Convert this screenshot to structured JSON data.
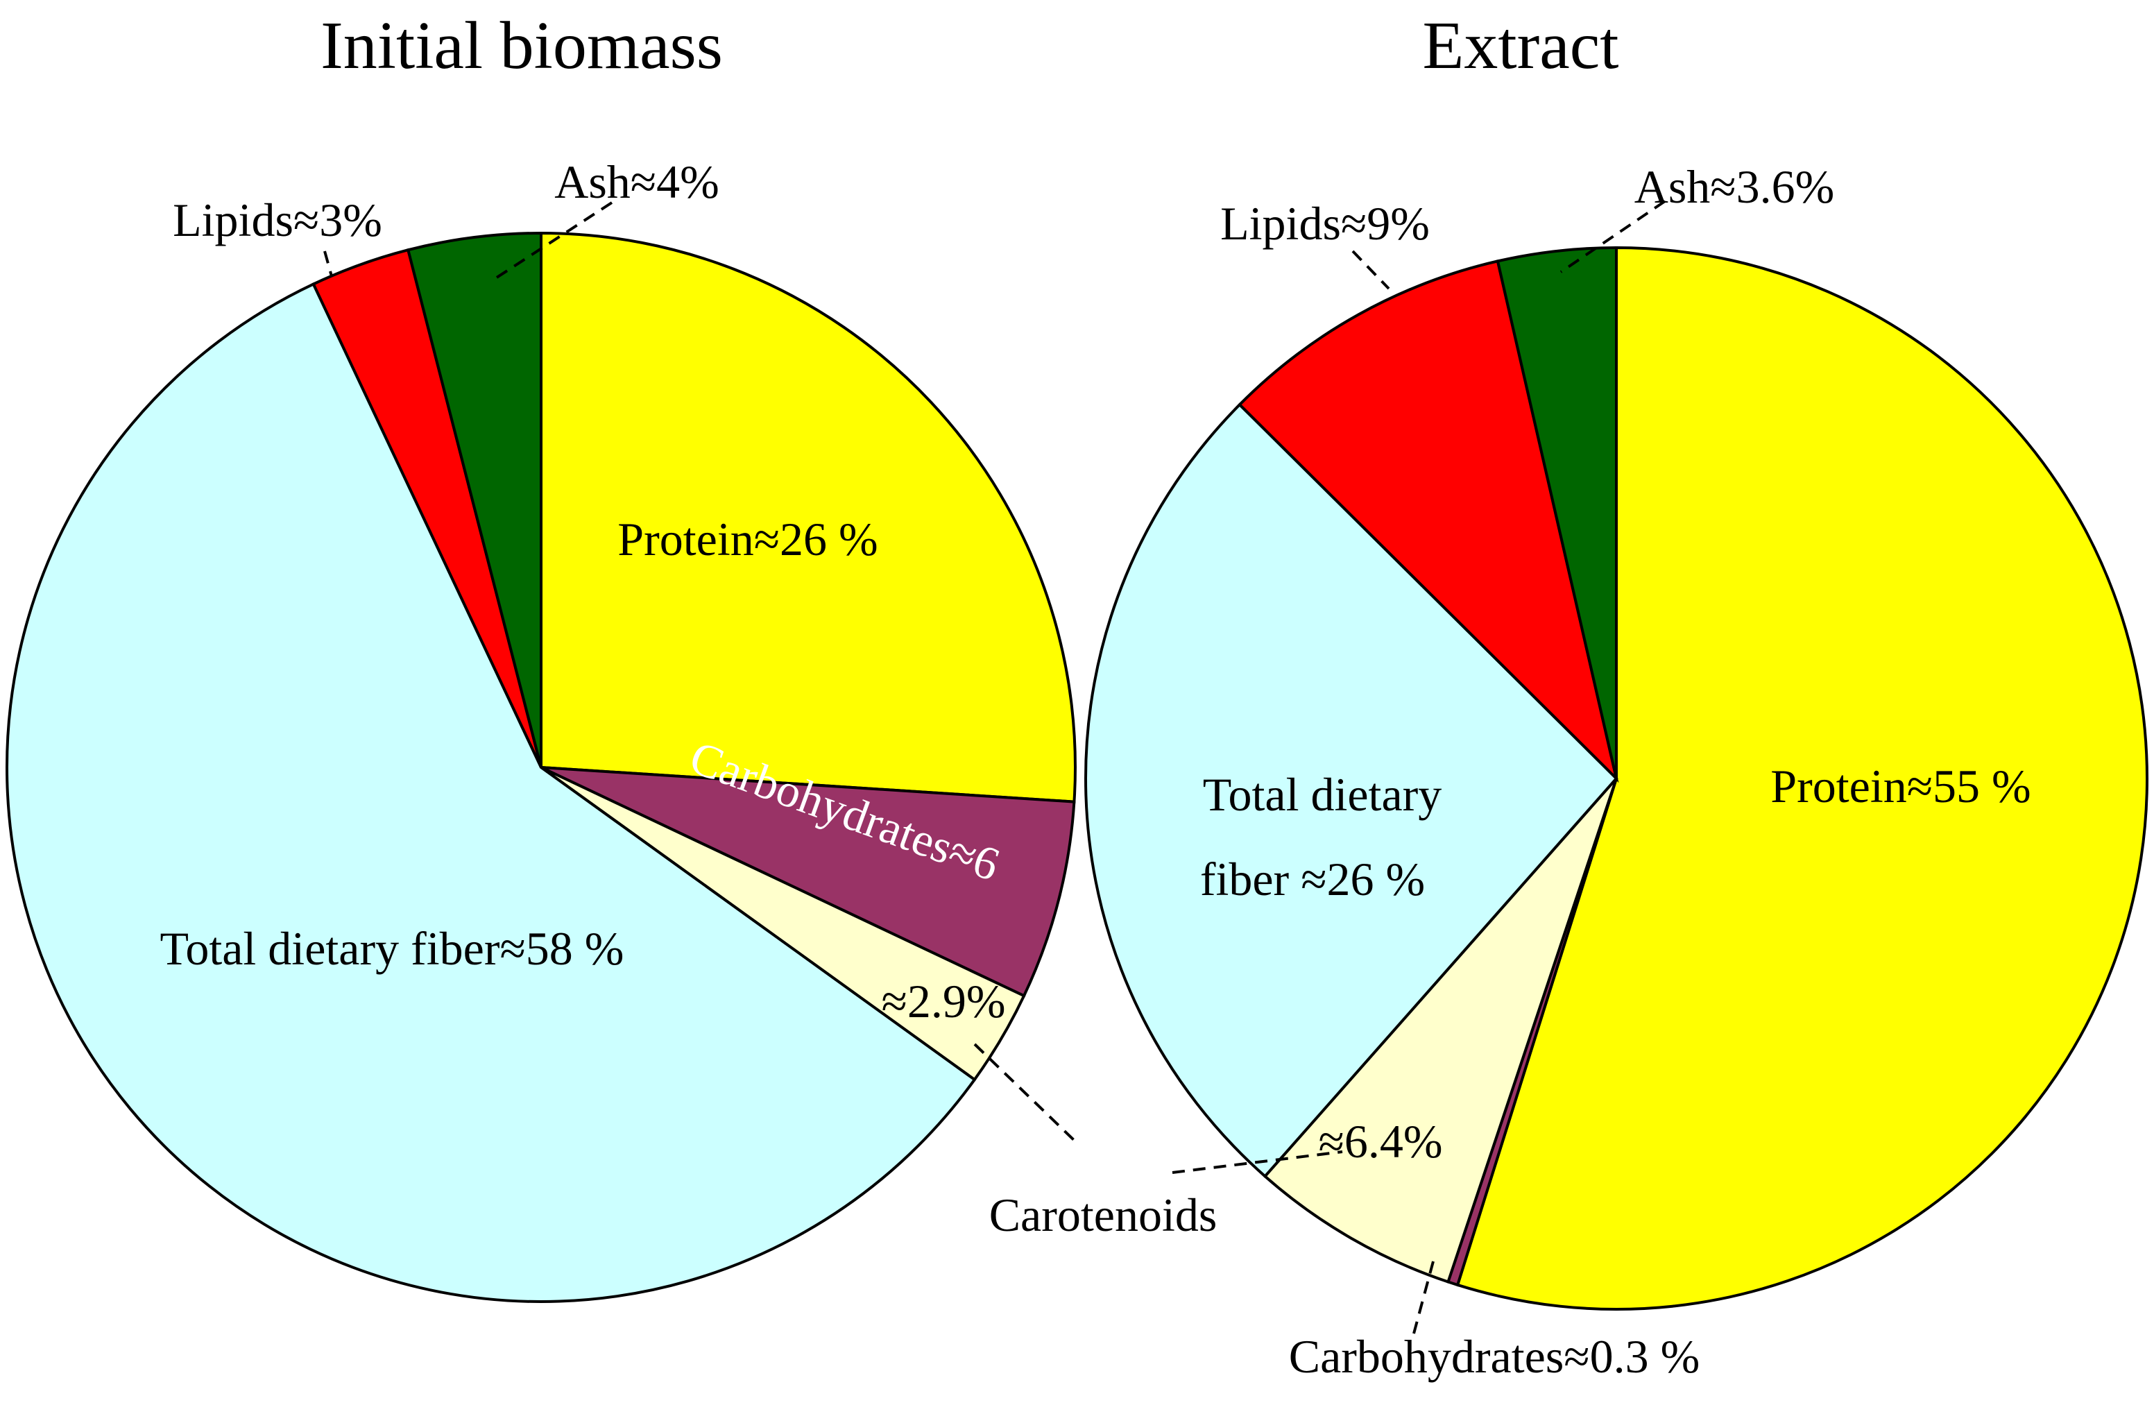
{
  "chart_data": [
    {
      "type": "pie",
      "title": "Initial biomass",
      "colors": {
        "Protein": "#ffff00",
        "Carbohydrates": "#993366",
        "Carotenoids": "#ffffcc",
        "Total dietary fiber": "#ccffff",
        "Lipids": "#ff0000",
        "Ash": "#006600"
      },
      "slices": [
        {
          "name": "Protein",
          "value": 26,
          "label": "Protein≈26 %"
        },
        {
          "name": "Carbohydrates",
          "value": 6,
          "label": "Carbohydrates≈6"
        },
        {
          "name": "Carotenoids",
          "value": 2.9,
          "label": "≈2.9%"
        },
        {
          "name": "Total dietary fiber",
          "value": 58,
          "label": "Total dietary fiber≈58 %"
        },
        {
          "name": "Lipids",
          "value": 3,
          "label": "Lipids≈3%"
        },
        {
          "name": "Ash",
          "value": 4,
          "label": "Ash≈4%"
        }
      ]
    },
    {
      "type": "pie",
      "title": "Extract",
      "colors": {
        "Protein": "#ffff00",
        "Carbohydrates": "#993366",
        "Carotenoids": "#ffffcc",
        "Total dietary fiber": "#ccffff",
        "Lipids": "#ff0000",
        "Ash": "#006600"
      },
      "slices": [
        {
          "name": "Protein",
          "value": 55,
          "label": "Protein≈55 %"
        },
        {
          "name": "Carbohydrates",
          "value": 0.3,
          "label": "Carbohydrates≈0.3 %"
        },
        {
          "name": "Carotenoids",
          "value": 6.4,
          "label": "≈6.4%"
        },
        {
          "name": "Total dietary fiber",
          "value": 26,
          "label_line1": "Total dietary",
          "label_line2": "fiber ≈26 %"
        },
        {
          "name": "Lipids",
          "value": 9,
          "label": "Lipids≈9%"
        },
        {
          "name": "Ash",
          "value": 3.6,
          "label": "Ash≈3.6%"
        }
      ]
    }
  ],
  "shared_labels": {
    "carotenoids": "Carotenoids"
  }
}
